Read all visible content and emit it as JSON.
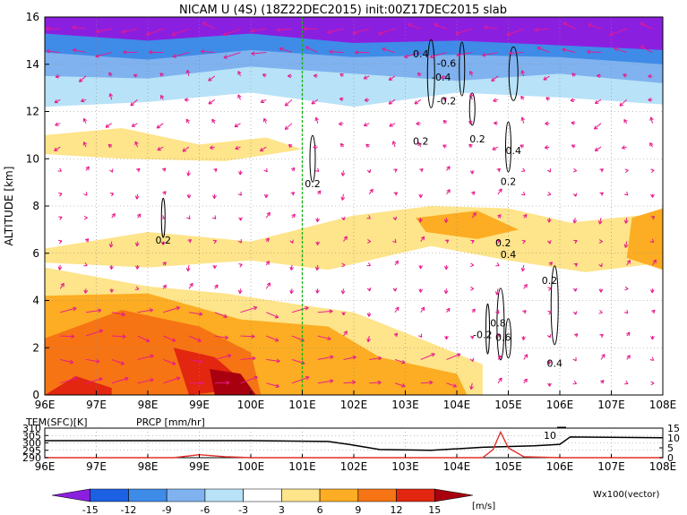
{
  "title": "NICAM U (4S) (18Z22DEC2015) init:00Z17DEC2015 slab",
  "colors": {
    "red_text": "#e0302a",
    "vector": "#e8198c",
    "green_line": "#17b317"
  },
  "chart_data": [
    {
      "type": "heatmap",
      "title": "NICAM U (4S) (18Z22DEC2015) init:00Z17DEC2015 slab",
      "xlabel": "",
      "ylabel": "ALTITUDE [km]",
      "xlim": [
        96,
        108
      ],
      "ylim": [
        0,
        16
      ],
      "x_ticks": [
        96,
        97,
        98,
        99,
        100,
        101,
        102,
        103,
        104,
        105,
        106,
        107,
        108
      ],
      "x_tick_labels": [
        "96E",
        "97E",
        "98E",
        "99E",
        "100E",
        "101E",
        "102E",
        "103E",
        "104E",
        "105E",
        "106E",
        "107E",
        "108E"
      ],
      "y_ticks": [
        0,
        2,
        4,
        6,
        8,
        10,
        12,
        14,
        16
      ],
      "y_tick_labels": [
        "0",
        "2",
        "4",
        "6",
        "8",
        "10",
        "12",
        "14",
        "16"
      ],
      "grid": true,
      "vertical_marker_lon": 101,
      "contour_labels": [
        {
          "text": "0.4",
          "x": 103.3,
          "y": 14.3
        },
        {
          "text": "-0.6",
          "x": 103.8,
          "y": 13.9
        },
        {
          "text": "-0.4",
          "x": 103.7,
          "y": 13.3
        },
        {
          "text": "-0.2",
          "x": 103.8,
          "y": 12.3
        },
        {
          "text": "0.2",
          "x": 103.3,
          "y": 10.6
        },
        {
          "text": "0.2",
          "x": 104.4,
          "y": 10.7
        },
        {
          "text": "0.4",
          "x": 105.1,
          "y": 10.2
        },
        {
          "text": "0.2",
          "x": 105.0,
          "y": 8.9
        },
        {
          "text": "0.2",
          "x": 101.2,
          "y": 8.8
        },
        {
          "text": "0.2",
          "x": 98.3,
          "y": 6.4
        },
        {
          "text": "0.2",
          "x": 104.9,
          "y": 6.3
        },
        {
          "text": "0.4",
          "x": 105.0,
          "y": 5.8
        },
        {
          "text": "0.2",
          "x": 105.8,
          "y": 4.7
        },
        {
          "text": "0.8",
          "x": 104.8,
          "y": 2.9
        },
        {
          "text": "-0.2",
          "x": 104.5,
          "y": 2.4
        },
        {
          "text": "0.6",
          "x": 104.9,
          "y": 2.3
        },
        {
          "text": "0.4",
          "x": 105.9,
          "y": 1.2
        }
      ]
    },
    {
      "type": "line",
      "left_label": "TEM(SFC)[K]",
      "right_label": "PRCP [mm/hr]",
      "xlim": [
        96,
        108
      ],
      "y_left_ticks": [
        "310",
        "305",
        "300",
        "295",
        "290"
      ],
      "y_right_ticks": [
        "15",
        "10",
        "5",
        "0"
      ],
      "series": [
        {
          "name": "TEM(SFC)[K]",
          "x": [
            96,
            100,
            101.5,
            101.9,
            102.5,
            103.5,
            104.5,
            105.5,
            106.0,
            106.2,
            108
          ],
          "values": [
            301.5,
            301.5,
            301,
            299,
            295.5,
            295,
            297,
            298,
            299,
            304,
            303.5
          ]
        },
        {
          "name": "PRCP [mm/hr]",
          "x": [
            96,
            98.5,
            99.0,
            99.5,
            100,
            104.5,
            104.7,
            104.85,
            105.0,
            105.3,
            106,
            108
          ],
          "values": [
            0,
            0,
            1.5,
            0.5,
            0,
            0,
            4,
            13,
            5,
            0.5,
            0,
            0
          ]
        }
      ],
      "annotation": "10"
    },
    {
      "type": "colorbar",
      "levels": [
        "-15",
        "-12",
        "-9",
        "-6",
        "-3",
        "3",
        "6",
        "9",
        "12",
        "15"
      ],
      "colors": [
        "#8b1fe0",
        "#1c60e3",
        "#3f8be8",
        "#7fb2ef",
        "#b8e2f7",
        "#ffffff",
        "#fee48a",
        "#fcad23",
        "#f67414",
        "#e2260f",
        "#a8000f"
      ],
      "unit": "[m/s]",
      "vector_label": "Wx100(vector)"
    }
  ]
}
